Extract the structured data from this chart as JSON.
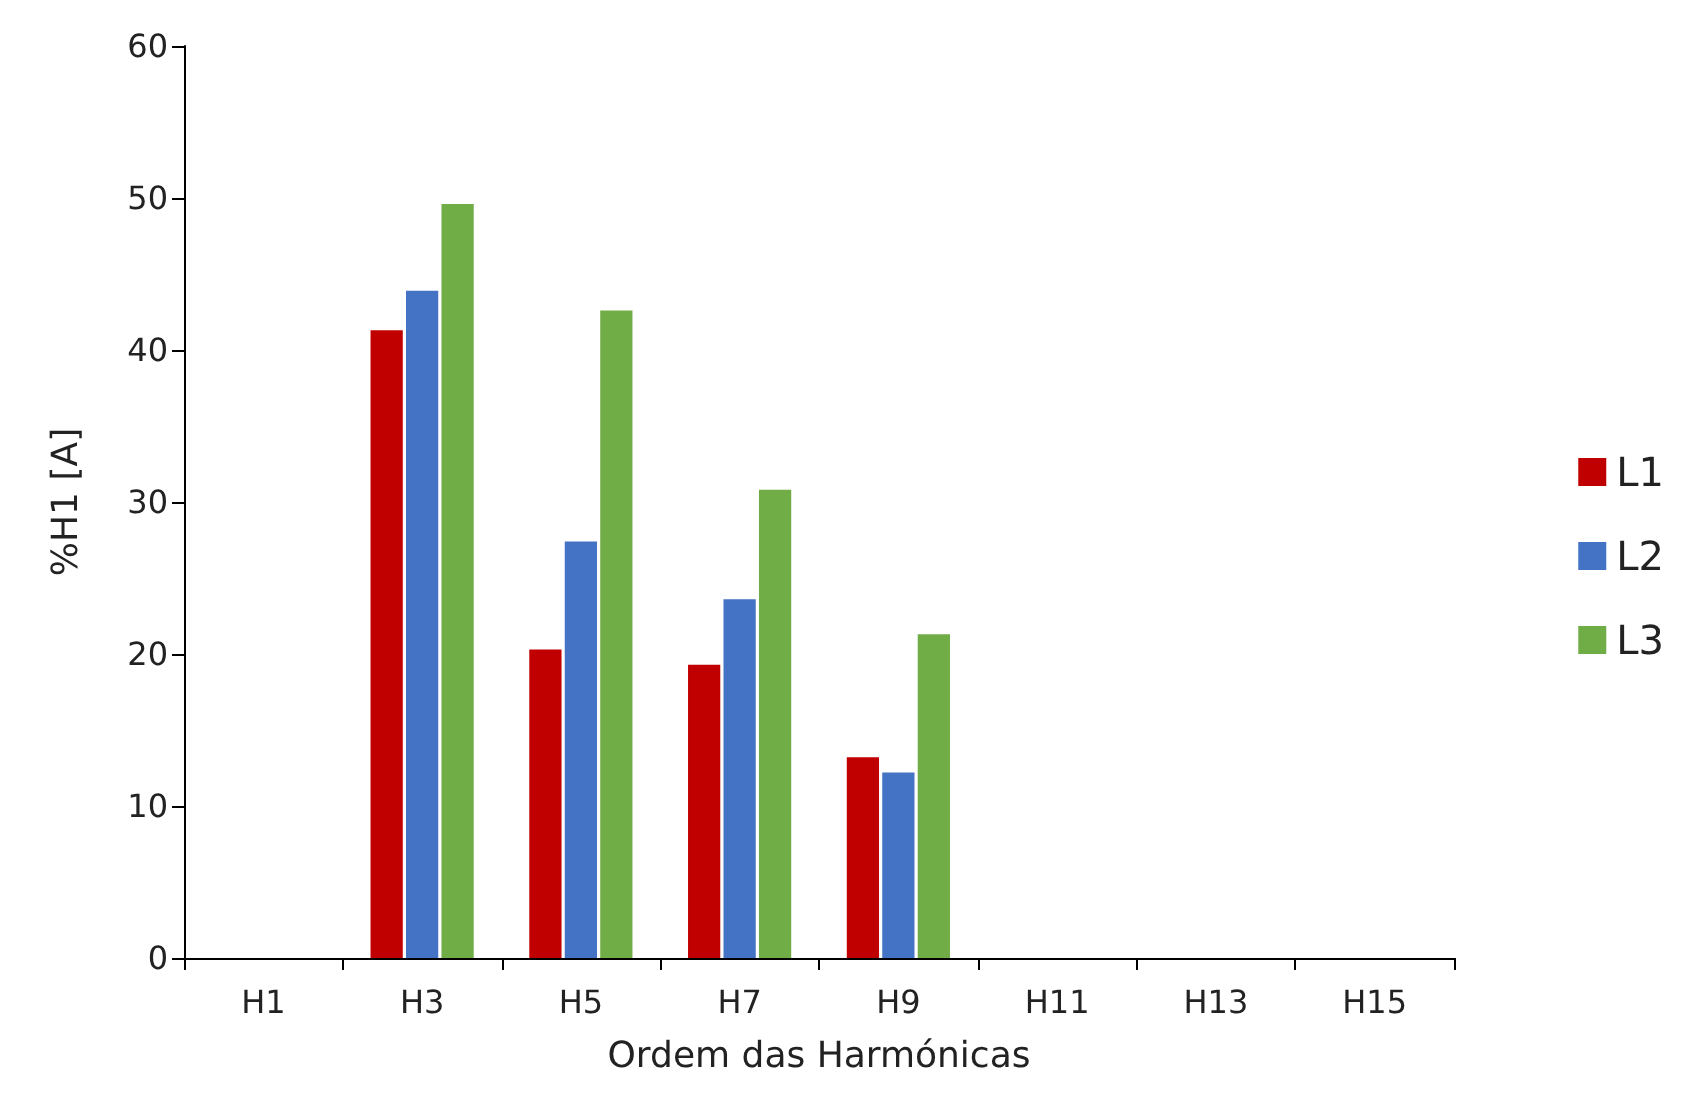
{
  "chart_data": {
    "type": "bar",
    "xlabel": "Ordem das Harmónicas",
    "ylabel": "%H1 [A]",
    "categories": [
      "H1",
      "H3",
      "H5",
      "H7",
      "H9",
      "H11",
      "H13",
      "H15"
    ],
    "series": [
      {
        "name": "L1",
        "color": "#c00000",
        "values": [
          0,
          41.3,
          20.3,
          19.3,
          13.2,
          0,
          0,
          0
        ]
      },
      {
        "name": "L2",
        "color": "#4472c4",
        "values": [
          0,
          43.9,
          27.4,
          23.6,
          12.2,
          0,
          0,
          0
        ]
      },
      {
        "name": "L3",
        "color": "#70ad47",
        "values": [
          0,
          49.6,
          42.6,
          30.8,
          21.3,
          0,
          0,
          0
        ]
      }
    ],
    "ylim": [
      0,
      60
    ],
    "yticks": [
      0,
      10,
      20,
      30,
      40,
      50,
      60
    ],
    "grid": false,
    "legend": "right"
  }
}
